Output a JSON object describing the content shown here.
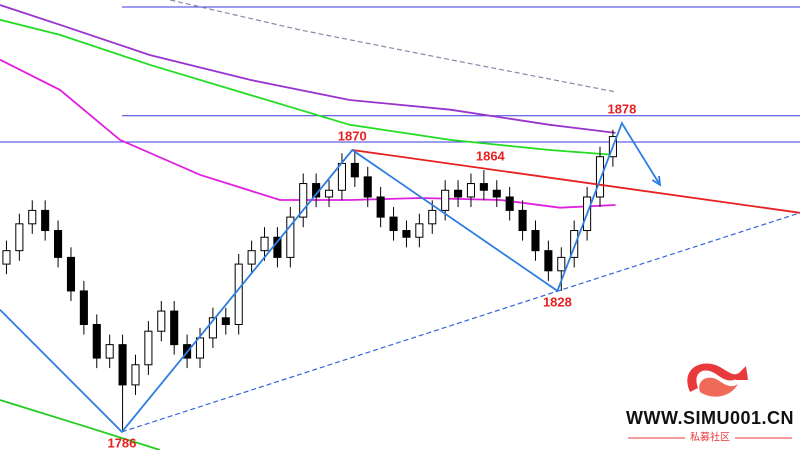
{
  "chart_data": {
    "type": "candlestick",
    "xlim": [
      -0.5,
      61.5
    ],
    "ylim": [
      1780.6,
      1914.7
    ],
    "up_color": "#ffffff",
    "down_color": "#000000",
    "open": [
      1836,
      1840,
      1848,
      1852,
      1846,
      1838,
      1828,
      1818,
      1808,
      1812,
      1800,
      1806,
      1816,
      1822,
      1812,
      1808,
      1814,
      1820,
      1818,
      1836,
      1840,
      1844,
      1838,
      1850,
      1860,
      1856,
      1858,
      1866,
      1862,
      1856,
      1850,
      1846,
      1844,
      1848,
      1852,
      1858,
      1856,
      1860,
      1858,
      1856,
      1852,
      1846,
      1840,
      1834,
      1838,
      1846,
      1856,
      1868
    ],
    "high": [
      1843,
      1851,
      1855,
      1855,
      1849,
      1841,
      1831,
      1821,
      1815,
      1815,
      1809,
      1819,
      1825,
      1825,
      1815,
      1817,
      1823,
      1823,
      1839,
      1843,
      1847,
      1847,
      1853,
      1863,
      1863,
      1861,
      1869,
      1870,
      1865,
      1859,
      1853,
      1849,
      1851,
      1855,
      1861,
      1861,
      1863,
      1864,
      1861,
      1859,
      1855,
      1849,
      1843,
      1841,
      1849,
      1859,
      1871,
      1876
    ],
    "low": [
      1833,
      1837,
      1845,
      1843,
      1835,
      1825,
      1815,
      1805,
      1805,
      1786,
      1797,
      1803,
      1813,
      1809,
      1805,
      1805,
      1811,
      1815,
      1815,
      1833,
      1837,
      1835,
      1835,
      1847,
      1853,
      1853,
      1855,
      1859,
      1853,
      1847,
      1843,
      1841,
      1841,
      1845,
      1849,
      1853,
      1853,
      1855,
      1853,
      1849,
      1843,
      1837,
      1831,
      1828,
      1835,
      1843,
      1853,
      1865
    ],
    "close": [
      1840,
      1848,
      1852,
      1846,
      1838,
      1828,
      1818,
      1808,
      1812,
      1800,
      1806,
      1816,
      1822,
      1812,
      1808,
      1814,
      1820,
      1818,
      1836,
      1840,
      1844,
      1838,
      1850,
      1860,
      1856,
      1858,
      1866,
      1862,
      1856,
      1850,
      1846,
      1844,
      1848,
      1852,
      1858,
      1856,
      1860,
      1858,
      1856,
      1852,
      1846,
      1840,
      1834,
      1838,
      1846,
      1856,
      1868,
      1874
    ],
    "levels": [
      {
        "value": 1912.6,
        "from": 8.95,
        "color": "#3a3ae0"
      },
      {
        "value": 1880.2,
        "from": 8.95,
        "color": "#3a3ae0"
      },
      {
        "value": 1872.4,
        "from": -0.5,
        "color": "#3a3ae0"
      }
    ],
    "lines": [
      {
        "color": "#9933cc",
        "dashed": false,
        "arrow": false,
        "x": [
          -0.5,
          4.15,
          11.1,
          18.9,
          26.6,
          34.4,
          42.1,
          47.2
        ],
        "values": [
          1913.2,
          1907.3,
          1898.3,
          1890.9,
          1884.9,
          1882.0,
          1877.5,
          1875.1
        ]
      },
      {
        "color": "#22dd22",
        "dashed": false,
        "arrow": false,
        "x": [
          -0.5,
          4.15,
          11.1,
          18.9,
          26.6,
          34.4,
          42.1,
          47.2
        ],
        "values": [
          1908.8,
          1904.3,
          1895.4,
          1886.4,
          1877.5,
          1873.0,
          1870.0,
          1868.5
        ]
      },
      {
        "color": "#e020e0",
        "dashed": false,
        "arrow": false,
        "x": [
          -0.5,
          4.15,
          8.8,
          15.0,
          21.2,
          26.6,
          32.1,
          38.3,
          42.9,
          47.2
        ],
        "values": [
          1896.9,
          1887.9,
          1873.0,
          1862.6,
          1855.1,
          1855.1,
          1855.7,
          1855.1,
          1852.8,
          1853.6
        ]
      },
      {
        "color": "#8888aa",
        "dashed": true,
        "arrow": false,
        "x": [
          12.7,
          22.75,
          34.4,
          47.2
        ],
        "values": [
          1914.7,
          1905.8,
          1896.9,
          1887.3
        ]
      },
      {
        "color": "#22cc22",
        "dashed": false,
        "arrow": false,
        "x": [
          -0.5,
          5.7,
          11.9
        ],
        "values": [
          1795.5,
          1788.1,
          1780.6
        ]
      },
      {
        "color": "#e82020",
        "dashed": false,
        "arrow": false,
        "x": [
          26.8,
          61.5
        ],
        "values": [
          1870,
          1851.3
        ]
      },
      {
        "color": "#3366dd",
        "dashed": true,
        "arrow": false,
        "x": [
          8.95,
          61.5
        ],
        "values": [
          1786,
          1851.3
        ]
      },
      {
        "color": "#2e7ee0",
        "dashed": false,
        "arrow": true,
        "x": [
          -0.5,
          8.95,
          26.8,
          42.7,
          47.7,
          50.65
        ],
        "values": [
          1822.4,
          1786,
          1870,
          1828,
          1878,
          1859.6
        ]
      }
    ],
    "annotation_color": "#e82020",
    "annotations": [
      {
        "x": 8.95,
        "value": 1786
      },
      {
        "x": 26.8,
        "value": 1870
      },
      {
        "x": 37.5,
        "value": 1864
      },
      {
        "x": 42.7,
        "value": 1828
      },
      {
        "x": 47.7,
        "value": 1878
      }
    ]
  },
  "watermark": {
    "site": "WWW.SIMU001.CN",
    "tagline": "私募社区"
  }
}
